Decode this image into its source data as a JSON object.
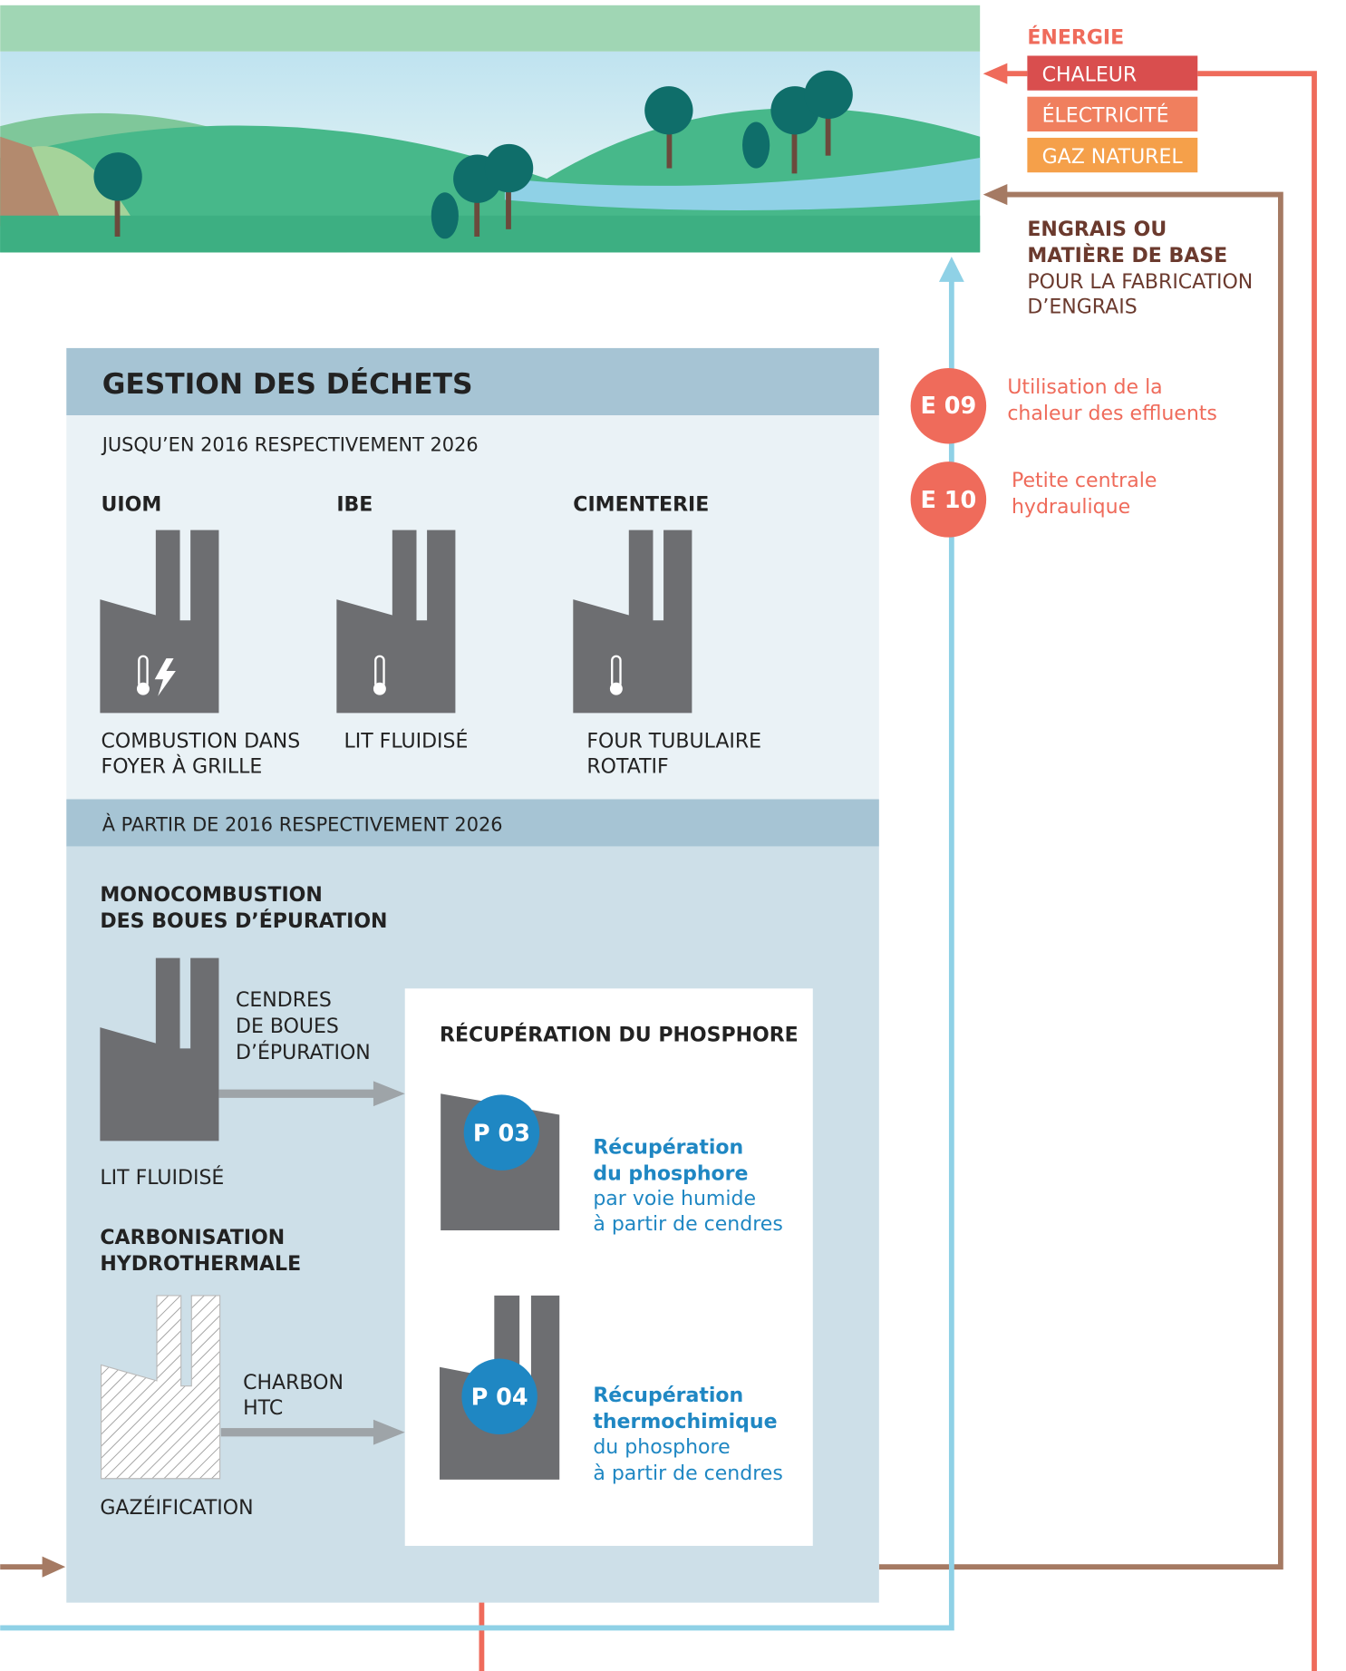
{
  "legend": {
    "energy_title": "ÉNERGIE",
    "energy_items": [
      "CHALEUR",
      "ÉLECTRICITÉ",
      "GAZ NATUREL"
    ],
    "fertilizer_bold": [
      "ENGRAIS OU",
      "MATIÈRE DE BASE"
    ],
    "fertilizer_regular": [
      "POUR LA FABRICATION",
      "D’ENGRAIS"
    ]
  },
  "measures": [
    {
      "code": "E 09",
      "label": [
        "Utilisation de la",
        "chaleur des effluents"
      ]
    },
    {
      "code": "E 10",
      "label": [
        "Petite centrale",
        "hydraulique"
      ]
    }
  ],
  "panel": {
    "title": "GESTION DES DÉCHETS",
    "period1": "JUSQU’EN 2016 RESPECTIVEMENT 2026",
    "plants": [
      {
        "name": "UIOM",
        "process": [
          "COMBUSTION DANS",
          "FOYER À GRILLE"
        ]
      },
      {
        "name": "IBE",
        "process": [
          "LIT FLUIDISÉ"
        ]
      },
      {
        "name": "CIMENTERIE",
        "process": [
          "FOUR TUBULAIRE",
          "ROTATIF"
        ]
      }
    ],
    "period2": "À PARTIR DE 2016 RESPECTIVEMENT 2026",
    "mono": {
      "title": [
        "MONOCOMBUSTION",
        "DES BOUES D’ÉPURATION"
      ],
      "output": [
        "CENDRES",
        "DE BOUES",
        "D’ÉPURATION"
      ],
      "process": "LIT FLUIDISÉ"
    },
    "htc": {
      "title": [
        "CARBONISATION",
        "HYDROTHERMALE"
      ],
      "output": [
        "CHARBON",
        "HTC"
      ],
      "process": "GAZÉIFICATION"
    },
    "recovery": {
      "title": "RÉCUPÉRATION DU PHOSPHORE",
      "items": [
        {
          "code": "P 03",
          "bold": [
            "Récupération",
            "du phosphore"
          ],
          "regular": [
            "par voie humide",
            "à partir de cendres"
          ]
        },
        {
          "code": "P 04",
          "bold": [
            "Récupération",
            "thermochimique"
          ],
          "regular": [
            "du phosphore",
            "à partir de cendres"
          ]
        }
      ]
    }
  }
}
